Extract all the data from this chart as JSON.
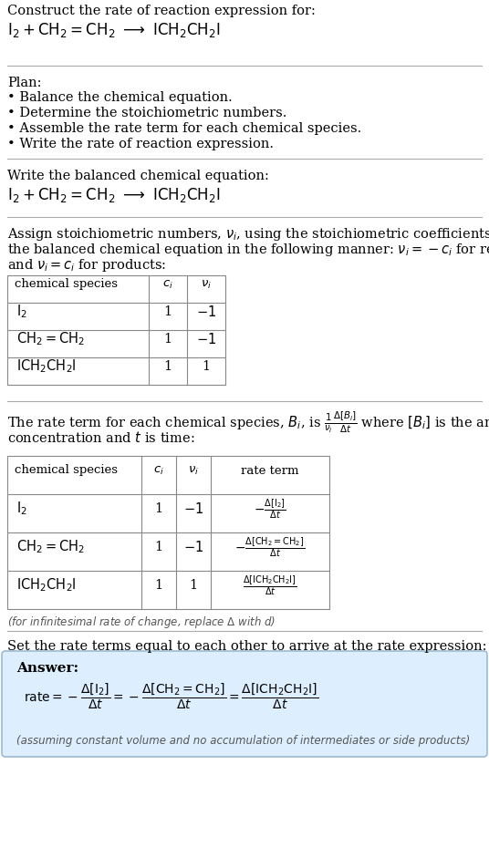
{
  "bg_color": "#ffffff",
  "text_color": "#000000",
  "gray_text": "#555555",
  "answer_bg": "#ddeeff",
  "answer_border": "#9bbbd4",
  "title_line1": "Construct the rate of reaction expression for:",
  "plan_header": "Plan:",
  "plan_items": [
    "• Balance the chemical equation.",
    "• Determine the stoichiometric numbers.",
    "• Assemble the rate term for each chemical species.",
    "• Write the rate of reaction expression."
  ],
  "balanced_eq_header": "Write the balanced chemical equation:",
  "stoich_header_lines": [
    "Assign stoichiometric numbers, $\\nu_i$, using the stoichiometric coefficients, $c_i$, from",
    "the balanced chemical equation in the following manner: $\\nu_i = -c_i$ for reactants",
    "and $\\nu_i = c_i$ for products:"
  ],
  "table1_header": [
    "chemical species",
    "$c_i$",
    "$\\nu_i$"
  ],
  "table1_rows": [
    [
      "$\\mathrm{I_2}$",
      "1",
      "$-1$"
    ],
    [
      "$\\mathrm{CH_2{=}CH_2}$",
      "1",
      "$-1$"
    ],
    [
      "$\\mathrm{ICH_2CH_2I}$",
      "1",
      "1"
    ]
  ],
  "rate_header_lines": [
    "The rate term for each chemical species, $B_i$, is $\\frac{1}{\\nu_i}\\frac{\\Delta[B_i]}{\\Delta t}$ where $[B_i]$ is the amount",
    "concentration and $t$ is time:"
  ],
  "table2_header": [
    "chemical species",
    "$c_i$",
    "$\\nu_i$",
    "rate term"
  ],
  "table2_rows": [
    [
      "$\\mathrm{I_2}$",
      "1",
      "$-1$",
      "$-\\frac{\\Delta[\\mathrm{I_2}]}{\\Delta t}$"
    ],
    [
      "$\\mathrm{CH_2{=}CH_2}$",
      "1",
      "$-1$",
      "$-\\frac{\\Delta[\\mathrm{CH_2{=}CH_2}]}{\\Delta t}$"
    ],
    [
      "$\\mathrm{ICH_2CH_2I}$",
      "1",
      "1",
      "$\\frac{\\Delta[\\mathrm{ICH_2CH_2I}]}{\\Delta t}$"
    ]
  ],
  "infinitesimal_note": "(for infinitesimal rate of change, replace $\\Delta$ with $d$)",
  "set_rate_header": "Set the rate terms equal to each other to arrive at the rate expression:",
  "answer_label": "Answer:",
  "assuming_note": "(assuming constant volume and no accumulation of intermediates or side products)"
}
